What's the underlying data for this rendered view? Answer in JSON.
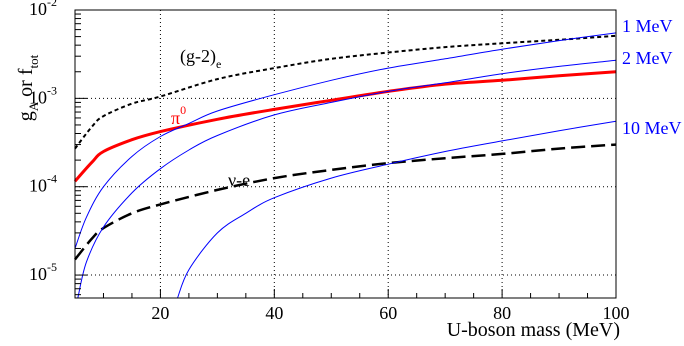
{
  "chart_data": {
    "type": "line",
    "xlabel": "U-boson mass (MeV)",
    "ylabel_main": "g",
    "ylabel_main_sub": "A",
    "ylabel_mid": " or f",
    "ylabel_mid_sub": "tot",
    "xlim": [
      5,
      100
    ],
    "ylim": [
      5.5e-06,
      0.01
    ],
    "log_y": true,
    "grid": true,
    "x_ticks": [
      20,
      40,
      60,
      80,
      100
    ],
    "x_tick_labels": [
      "20",
      "40",
      "60",
      "80",
      "100"
    ],
    "y_ticks": [
      1e-05,
      0.0001,
      0.001,
      0.01
    ],
    "y_tick_bases": [
      "10",
      "10",
      "10",
      "10"
    ],
    "y_tick_exps": [
      "-5",
      "-4",
      "-3",
      "-2"
    ],
    "series": [
      {
        "name": "(g-2)",
        "name_sub": "e",
        "color": "#000000",
        "style": "dotted",
        "x": [
          5,
          8,
          10,
          15,
          20,
          30,
          40,
          50,
          60,
          70,
          80,
          90,
          100
        ],
        "y": [
          0.00027,
          0.00048,
          0.00063,
          0.00087,
          0.00105,
          0.00165,
          0.0022,
          0.0028,
          0.0033,
          0.0038,
          0.0042,
          0.0046,
          0.0051
        ]
      },
      {
        "name": "π",
        "name_sup": "0",
        "color": "#ff0000",
        "style": "solid-thick",
        "x": [
          5,
          8,
          10,
          15,
          20,
          30,
          40,
          50,
          60,
          70,
          80,
          90,
          100
        ],
        "y": [
          0.000115,
          0.00019,
          0.00025,
          0.00034,
          0.00042,
          0.00058,
          0.00075,
          0.00095,
          0.0012,
          0.00145,
          0.0016,
          0.0018,
          0.002
        ]
      },
      {
        "name": "ν-e",
        "color": "#000000",
        "style": "dashed",
        "x": [
          5,
          8,
          10,
          15,
          20,
          30,
          40,
          50,
          60,
          70,
          80,
          90,
          100
        ],
        "y": [
          1.5e-05,
          2.6e-05,
          3.4e-05,
          5e-05,
          6.3e-05,
          9.2e-05,
          0.000125,
          0.000155,
          0.000185,
          0.00021,
          0.000235,
          0.00027,
          0.0003
        ]
      },
      {
        "name": "1 MeV",
        "color": "#0000ff",
        "style": "solid-thin",
        "x": [
          5,
          7,
          10,
          15,
          20,
          25,
          30,
          40,
          50,
          60,
          70,
          80,
          90,
          100
        ],
        "y": [
          2e-05,
          4.5e-05,
          0.0001,
          0.00022,
          0.00037,
          0.00052,
          0.00072,
          0.0011,
          0.0016,
          0.0022,
          0.0028,
          0.0036,
          0.0045,
          0.0055
        ]
      },
      {
        "name": "2 MeV",
        "color": "#0000ff",
        "style": "solid-thin",
        "x": [
          5.5,
          7,
          10,
          15,
          20,
          25,
          30,
          40,
          50,
          60,
          70,
          80,
          90,
          100
        ],
        "y": [
          5.5e-06,
          1.4e-05,
          3.5e-05,
          8.5e-05,
          0.00016,
          0.00026,
          0.00038,
          0.00065,
          0.0009,
          0.0012,
          0.0015,
          0.0019,
          0.0023,
          0.0027
        ]
      },
      {
        "name": "10 MeV",
        "color": "#0000ff",
        "style": "solid-thin",
        "x": [
          23,
          25,
          30,
          35,
          40,
          50,
          60,
          70,
          80,
          90,
          100
        ],
        "y": [
          5.5e-06,
          1.15e-05,
          3e-05,
          5e-05,
          7.5e-05,
          0.000125,
          0.00018,
          0.00025,
          0.00033,
          0.00043,
          0.00055
        ]
      }
    ]
  }
}
